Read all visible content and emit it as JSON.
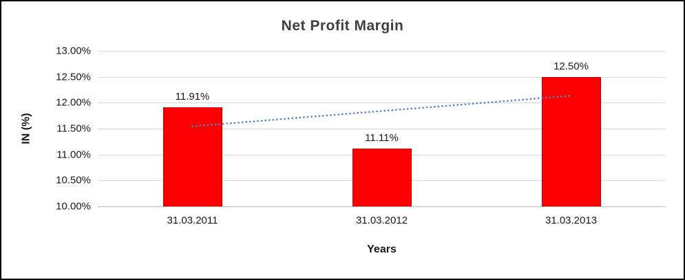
{
  "chart_data": {
    "type": "bar",
    "title": "Net Profit Margin",
    "categories": [
      "31.03.2011",
      "31.03.2012",
      "31.03.2013"
    ],
    "values": [
      11.91,
      11.11,
      12.5
    ],
    "data_labels": [
      "11.91%",
      "11.11%",
      "12.50%"
    ],
    "xlabel": "Years",
    "ylabel": "IN (%)",
    "ylim": [
      10,
      13
    ],
    "ytick_step": 0.5,
    "ytick_labels": [
      "10.00%",
      "10.50%",
      "11.00%",
      "11.50%",
      "12.00%",
      "12.50%",
      "13.00%"
    ],
    "grid": true,
    "legend": "none",
    "bar_color": "#ff0000",
    "bar_border_color": "#c00000",
    "trendline": {
      "start_value": 11.545,
      "end_value": 12.135,
      "color": "#4a86c8",
      "style": "dotted"
    }
  }
}
